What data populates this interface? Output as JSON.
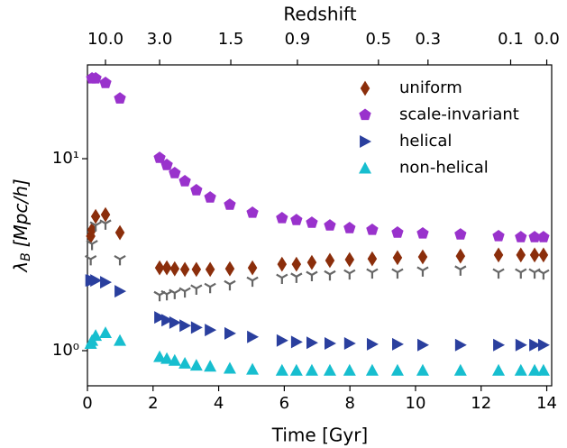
{
  "chart_data": {
    "type": "scatter",
    "xlabel": "Time [Gyr]",
    "ylabel": {
      "symbol": "λ",
      "subscript": "B",
      "unit": "[Mpc/h]"
    },
    "x2label": "Redshift",
    "x": [
      0.1,
      0.14,
      0.25,
      0.55,
      0.99,
      2.2,
      2.42,
      2.66,
      2.97,
      3.32,
      3.74,
      4.34,
      5.03,
      5.93,
      6.37,
      6.84,
      7.39,
      7.99,
      8.68,
      9.45,
      10.22,
      11.37,
      12.53,
      13.21,
      13.63,
      13.9
    ],
    "series": [
      {
        "name": "uniform",
        "color": "#8b2e0b",
        "marker": "diamond",
        "values": [
          3.95,
          4.26,
          5.0,
          5.11,
          4.12,
          2.7,
          2.7,
          2.67,
          2.65,
          2.65,
          2.65,
          2.67,
          2.7,
          2.82,
          2.82,
          2.88,
          2.95,
          2.98,
          3.01,
          3.05,
          3.08,
          3.11,
          3.15,
          3.15,
          3.15,
          3.15
        ]
      },
      {
        "name": "scale-invariant",
        "color": "#9932cc",
        "marker": "pentagon",
        "values": [
          null,
          26.2,
          26.2,
          24.8,
          20.6,
          10.1,
          9.27,
          8.41,
          7.63,
          6.85,
          6.28,
          5.76,
          5.23,
          4.9,
          4.79,
          4.64,
          4.49,
          4.35,
          4.26,
          4.12,
          4.08,
          4.03,
          3.95,
          3.9,
          3.9,
          3.9
        ]
      },
      {
        "name": "helical",
        "color": "#2a3f9e",
        "marker": "triangle-right",
        "values": [
          2.32,
          2.32,
          2.32,
          2.27,
          2.04,
          1.49,
          1.44,
          1.4,
          1.35,
          1.32,
          1.28,
          1.23,
          1.18,
          1.13,
          1.11,
          1.1,
          1.09,
          1.09,
          1.08,
          1.08,
          1.07,
          1.07,
          1.07,
          1.07,
          1.07,
          1.07
        ]
      },
      {
        "name": "non-helical",
        "color": "#17becf",
        "marker": "triangle-up",
        "values": [
          1.09,
          1.13,
          1.2,
          1.24,
          1.13,
          0.93,
          0.91,
          0.89,
          0.86,
          0.84,
          0.83,
          0.81,
          0.8,
          0.79,
          0.79,
          0.79,
          0.79,
          0.79,
          0.79,
          0.79,
          0.79,
          0.79,
          0.79,
          0.79,
          0.79,
          0.79
        ]
      },
      {
        "color": "#666666",
        "marker": "tri-down",
        "values": [
          3.0,
          3.6,
          4.5,
          4.6,
          3.0,
          1.95,
          1.97,
          2.0,
          2.04,
          2.11,
          2.15,
          2.22,
          2.32,
          2.4,
          2.43,
          2.48,
          2.5,
          2.53,
          2.56,
          2.56,
          2.62,
          2.65,
          2.56,
          2.56,
          2.56,
          2.53
        ]
      }
    ],
    "xlim": [
      0,
      14.15
    ],
    "xticks": [
      0,
      2,
      4,
      6,
      8,
      10,
      12,
      14
    ],
    "ylim": [
      0.656,
      30.8
    ],
    "ylog": true,
    "yticks": [
      {
        "value": 1,
        "label": "10⁰"
      },
      {
        "value": 10,
        "label": "10¹"
      }
    ],
    "x2ticks": [
      {
        "value": 0.55,
        "label": "10.0"
      },
      {
        "value": 2.2,
        "label": "3.0"
      },
      {
        "value": 4.37,
        "label": "1.5"
      },
      {
        "value": 6.4,
        "label": "0.9"
      },
      {
        "value": 8.87,
        "label": "0.5"
      },
      {
        "value": 10.38,
        "label": "0.3"
      },
      {
        "value": 12.9,
        "label": "0.1"
      },
      {
        "value": 14.0,
        "label": "0.0"
      }
    ],
    "legend": "upper right",
    "grid": false
  }
}
